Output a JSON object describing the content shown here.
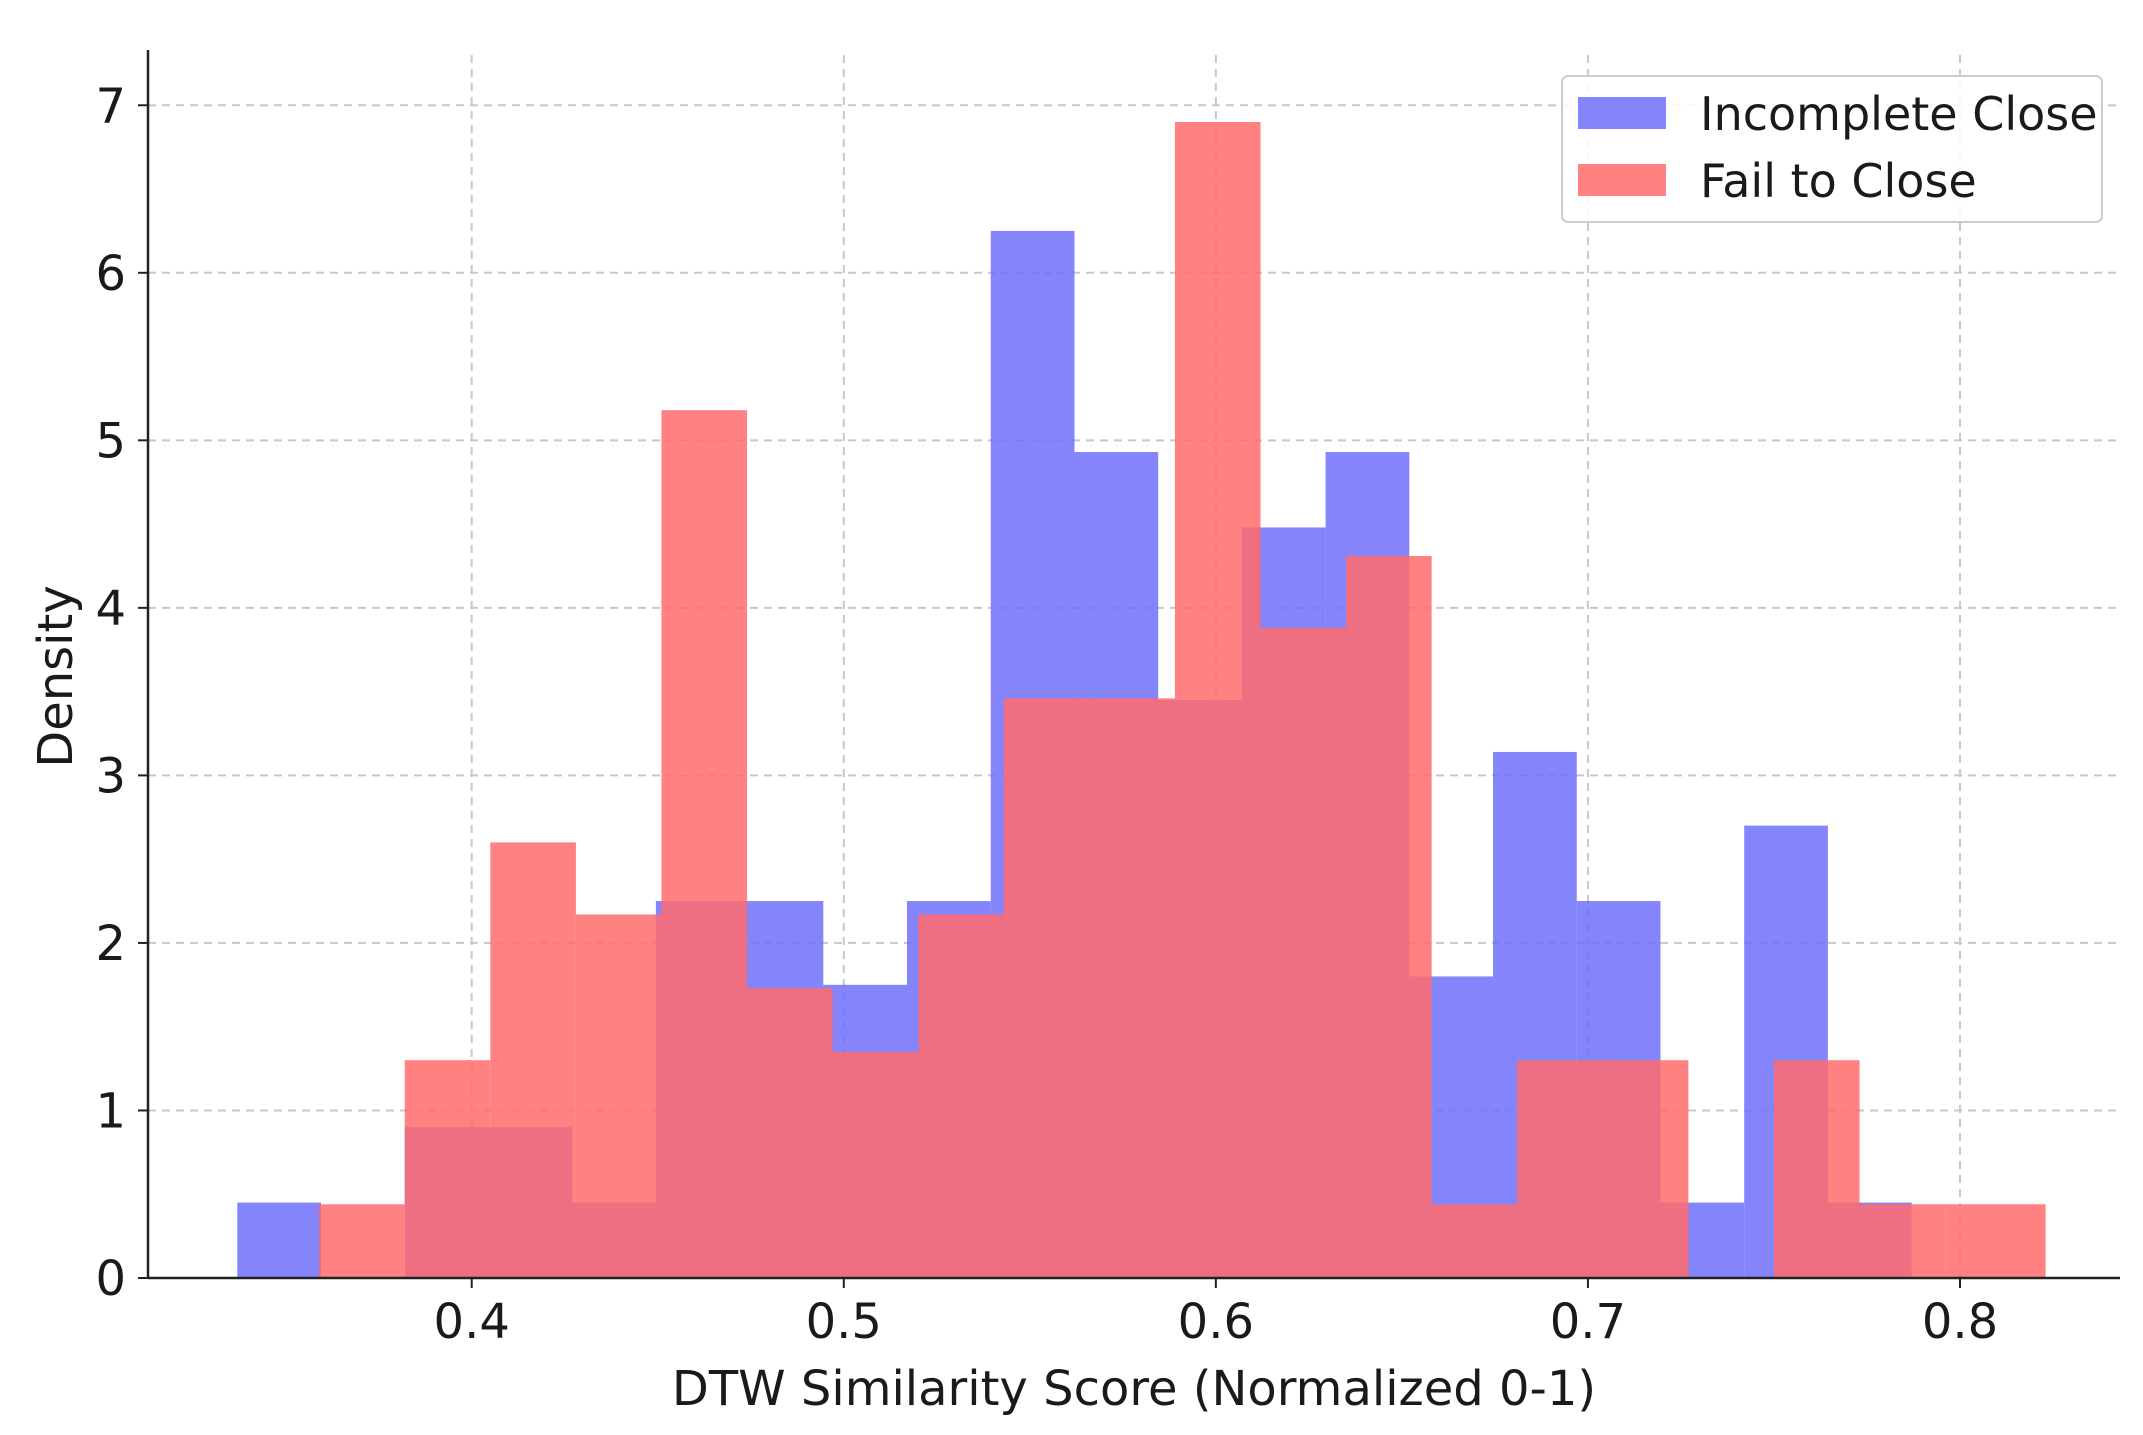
{
  "chart_data": {
    "type": "histogram",
    "title": "",
    "xlabel": "DTW Similarity Score (Normalized 0-1)",
    "ylabel": "Density",
    "xlim": [
      0.313,
      0.843
    ],
    "ylim": [
      0,
      7.3
    ],
    "xticks": [
      "0.4",
      "0.5",
      "0.6",
      "0.7",
      "0.8"
    ],
    "yticks": [
      "0",
      "1",
      "2",
      "3",
      "4",
      "5",
      "6",
      "7"
    ],
    "grid": true,
    "legend_position": "top-right",
    "series": [
      {
        "name": "Incomplete Close",
        "color": "#6e6efa",
        "opacity": 0.85,
        "bin_edges": [
          0.337,
          0.3595,
          0.382,
          0.4045,
          0.427,
          0.4495,
          0.472,
          0.4945,
          0.517,
          0.5395,
          0.562,
          0.5845,
          0.607,
          0.6295,
          0.652,
          0.6745,
          0.697,
          0.7195,
          0.742,
          0.7645,
          0.787
        ],
        "values": [
          0.45,
          0.0,
          0.9,
          0.9,
          0.45,
          2.25,
          2.25,
          1.75,
          2.25,
          6.25,
          4.93,
          3.45,
          4.48,
          4.93,
          1.8,
          3.14,
          2.25,
          0.45,
          2.7,
          0.45
        ]
      },
      {
        "name": "Fail to Close",
        "color": "#ff6b6b",
        "opacity": 0.85,
        "bin_edges": [
          0.359,
          0.382,
          0.405,
          0.428,
          0.451,
          0.474,
          0.497,
          0.52,
          0.543,
          0.566,
          0.589,
          0.612,
          0.635,
          0.658,
          0.681,
          0.704,
          0.727,
          0.75,
          0.773,
          0.796,
          0.823
        ],
        "values": [
          0.44,
          1.3,
          2.6,
          2.17,
          5.18,
          1.73,
          1.35,
          2.17,
          3.46,
          3.46,
          6.9,
          3.88,
          4.31,
          0.44,
          1.3,
          1.3,
          0.0,
          1.3,
          0.44,
          0.44
        ]
      }
    ]
  }
}
